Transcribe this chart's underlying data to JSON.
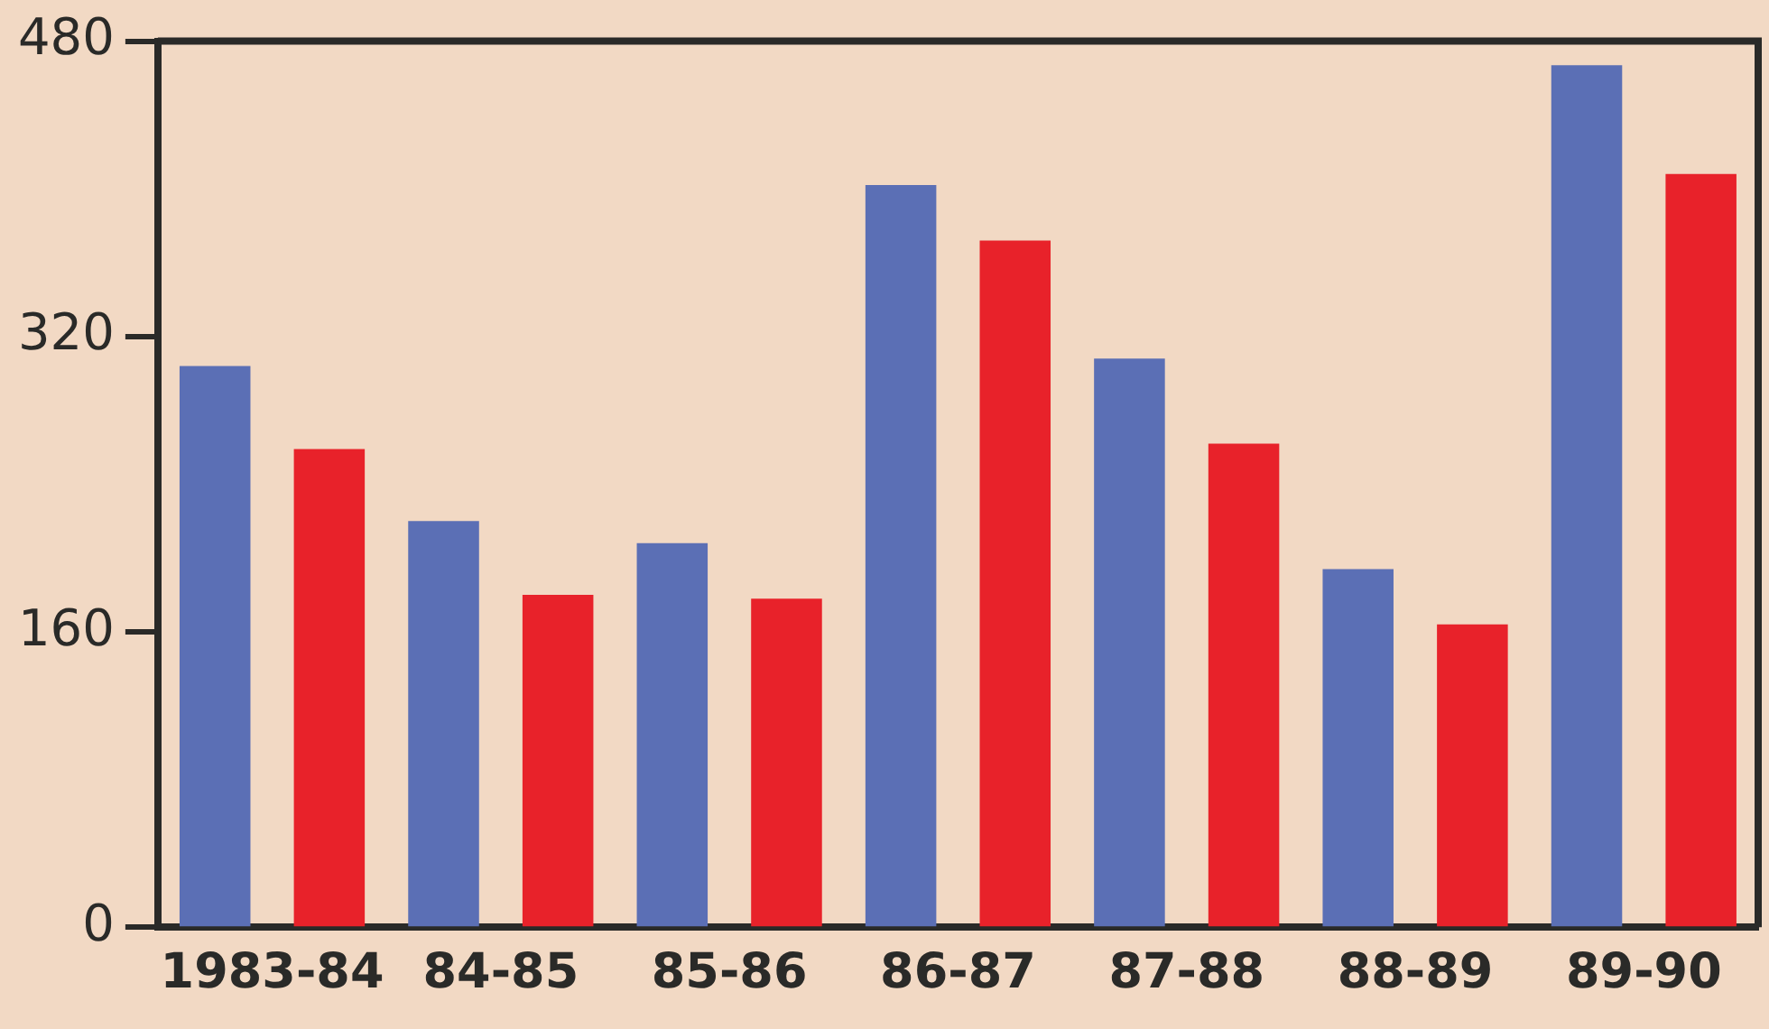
{
  "chart_data": {
    "type": "bar",
    "categories": [
      "1983-84",
      "84-85",
      "85-86",
      "86-87",
      "87-88",
      "88-89",
      "89-90"
    ],
    "series": [
      {
        "color": "#5b6fb5",
        "values": [
          304,
          220,
          208,
          402,
          308,
          194,
          467
        ]
      },
      {
        "color": "#e8222a",
        "values": [
          259,
          180,
          178,
          372,
          262,
          164,
          408
        ]
      }
    ],
    "ylim": [
      0,
      480
    ],
    "yticks": [
      0,
      160,
      320,
      480
    ],
    "grid": false,
    "legend": false
  }
}
